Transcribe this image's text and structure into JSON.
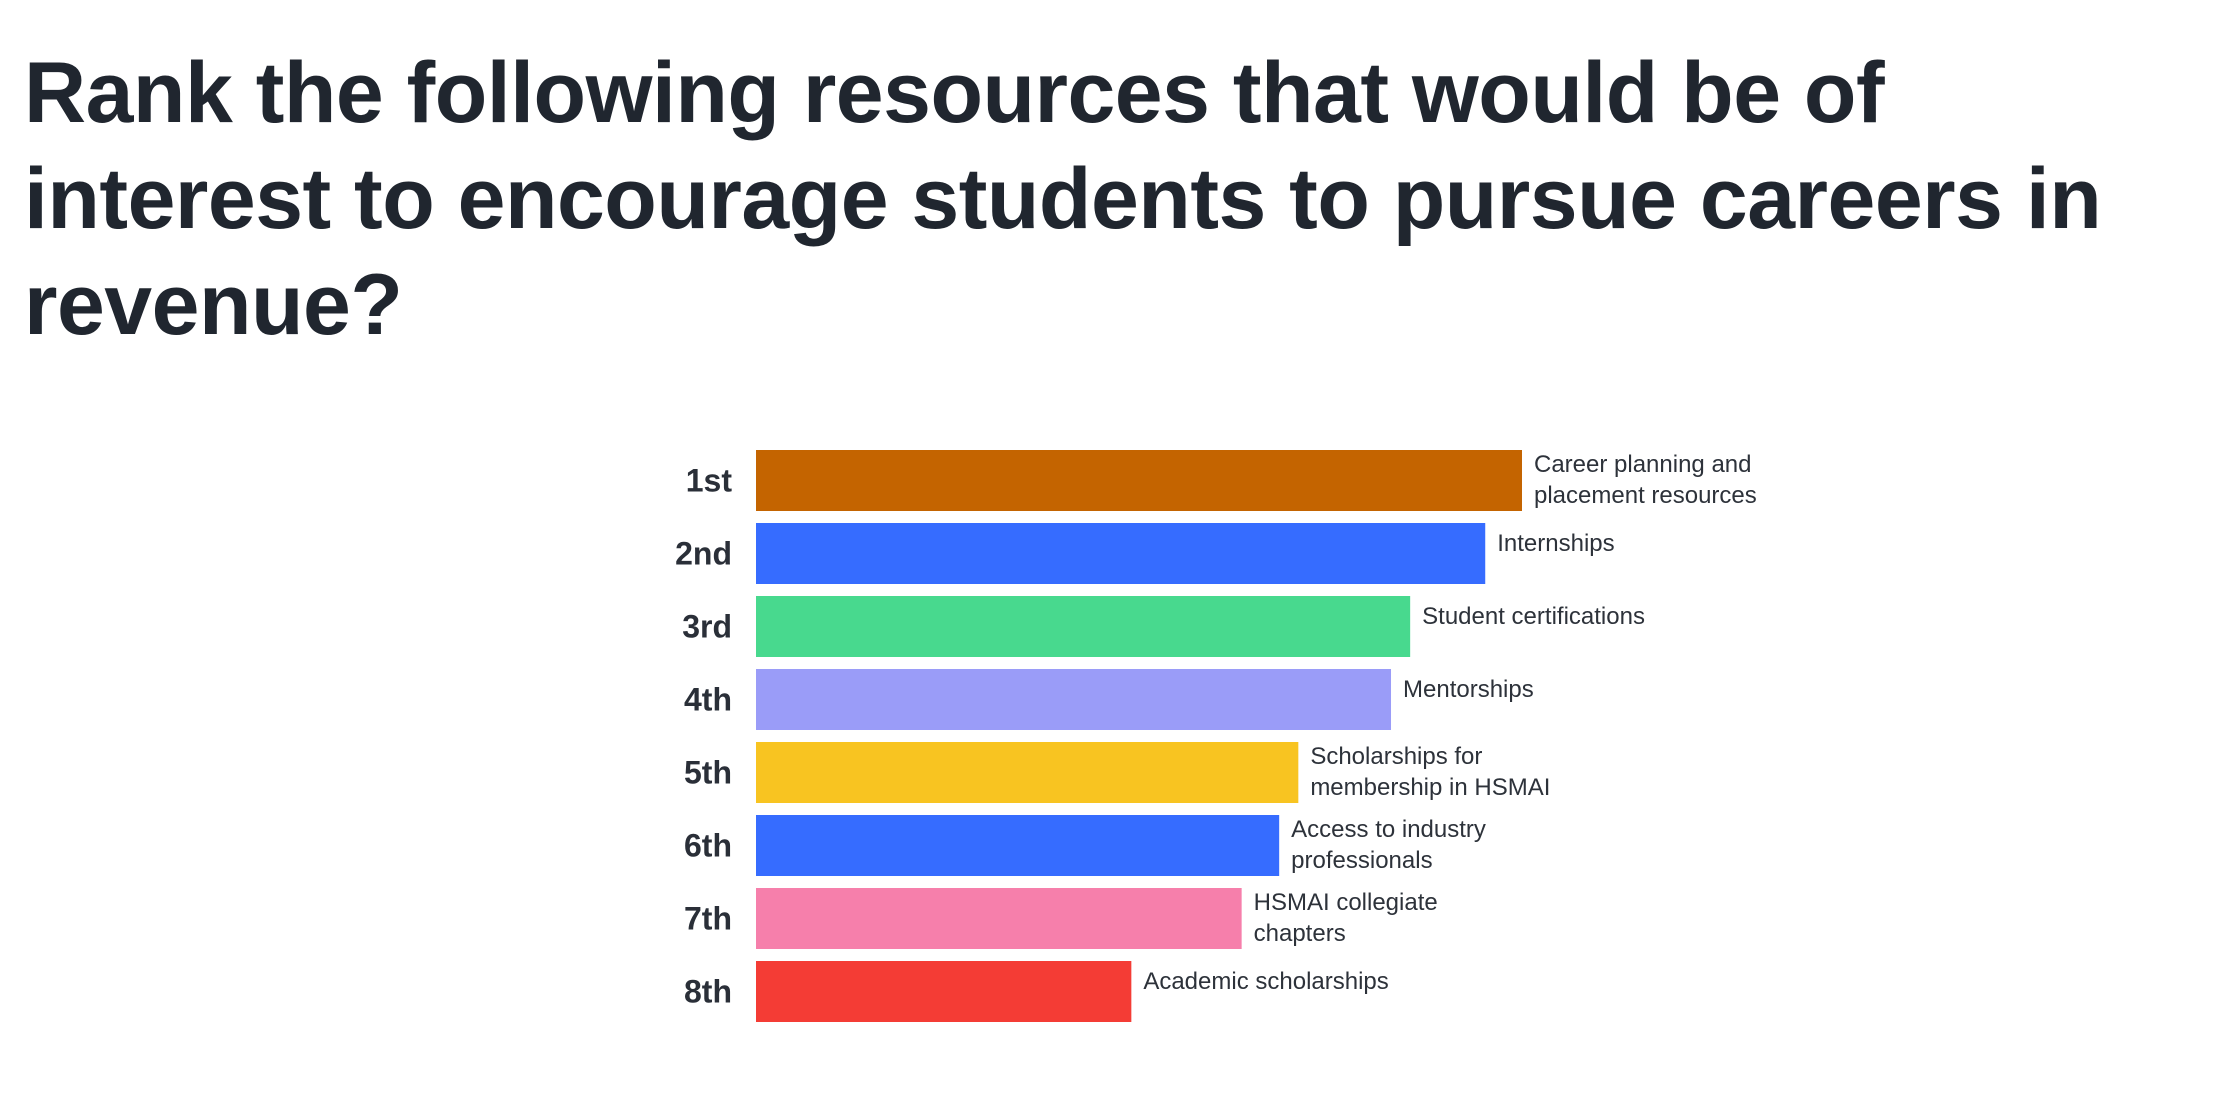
{
  "chart_data": {
    "type": "bar",
    "orientation": "horizontal",
    "title": "Rank the following resources that would be of interest to encourage students to pursue careers in revenue?",
    "categories": [
      "1st",
      "2nd",
      "3rd",
      "4th",
      "5th",
      "6th",
      "7th",
      "8th"
    ],
    "labels": [
      [
        "Career planning and",
        "placement resources"
      ],
      [
        "Internships"
      ],
      [
        "Student certifications"
      ],
      [
        "Mentorships"
      ],
      [
        "Scholarships for",
        "membership in HSMAI"
      ],
      [
        "Access to industry",
        "professionals"
      ],
      [
        "HSMAI collegiate",
        "chapters"
      ],
      [
        "Academic scholarships"
      ]
    ],
    "values": [
      100,
      95.2,
      85.4,
      82.9,
      70.8,
      68.3,
      63.4,
      49.0
    ],
    "colors": [
      "#c46400",
      "#366cff",
      "#48d98e",
      "#9a9cf8",
      "#f8c421",
      "#366cff",
      "#f67fab",
      "#f43c35"
    ],
    "xlim": [
      0,
      100
    ],
    "grid": false,
    "legend": "none"
  }
}
